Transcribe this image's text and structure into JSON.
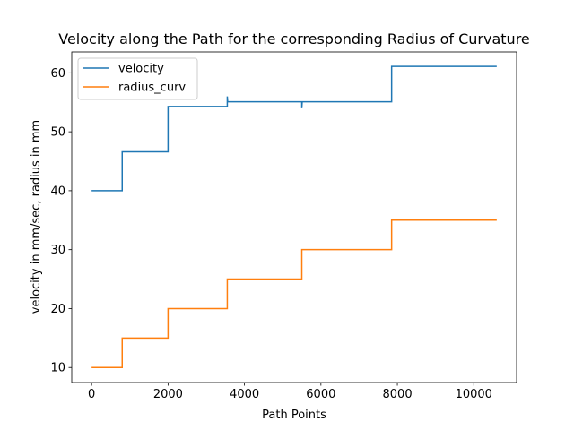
{
  "chart_data": {
    "type": "line",
    "title": "Velocity along the Path for the corresponding Radius of Curvature",
    "xlabel": "Path Points",
    "ylabel": "velocity in mm/sec, radius in mm",
    "xlim": [
      -520,
      11120
    ],
    "ylim": [
      7.45,
      63.55
    ],
    "xticks": [
      0,
      2000,
      4000,
      6000,
      8000,
      10000
    ],
    "yticks": [
      10,
      20,
      30,
      40,
      50,
      60
    ],
    "grid": false,
    "legend_position": "top-left",
    "series": [
      {
        "name": "velocity",
        "color": "#1f77b4",
        "x": [
          0,
          800,
          800,
          2000,
          2000,
          3550,
          3550,
          3560,
          3560,
          5500,
          5500,
          5510,
          5510,
          7850,
          7850,
          10600
        ],
        "y": [
          40.0,
          40.0,
          46.6,
          46.6,
          54.3,
          54.3,
          56.0,
          55.1,
          55.1,
          55.1,
          54.0,
          55.1,
          55.1,
          55.1,
          61.1,
          61.1
        ]
      },
      {
        "name": "radius_curv",
        "color": "#ff7f0e",
        "x": [
          0,
          800,
          800,
          2000,
          2000,
          3550,
          3550,
          5500,
          5500,
          7850,
          7850,
          10600
        ],
        "y": [
          10,
          10,
          15,
          15,
          20,
          20,
          25,
          25,
          30,
          30,
          35,
          35
        ]
      }
    ]
  }
}
